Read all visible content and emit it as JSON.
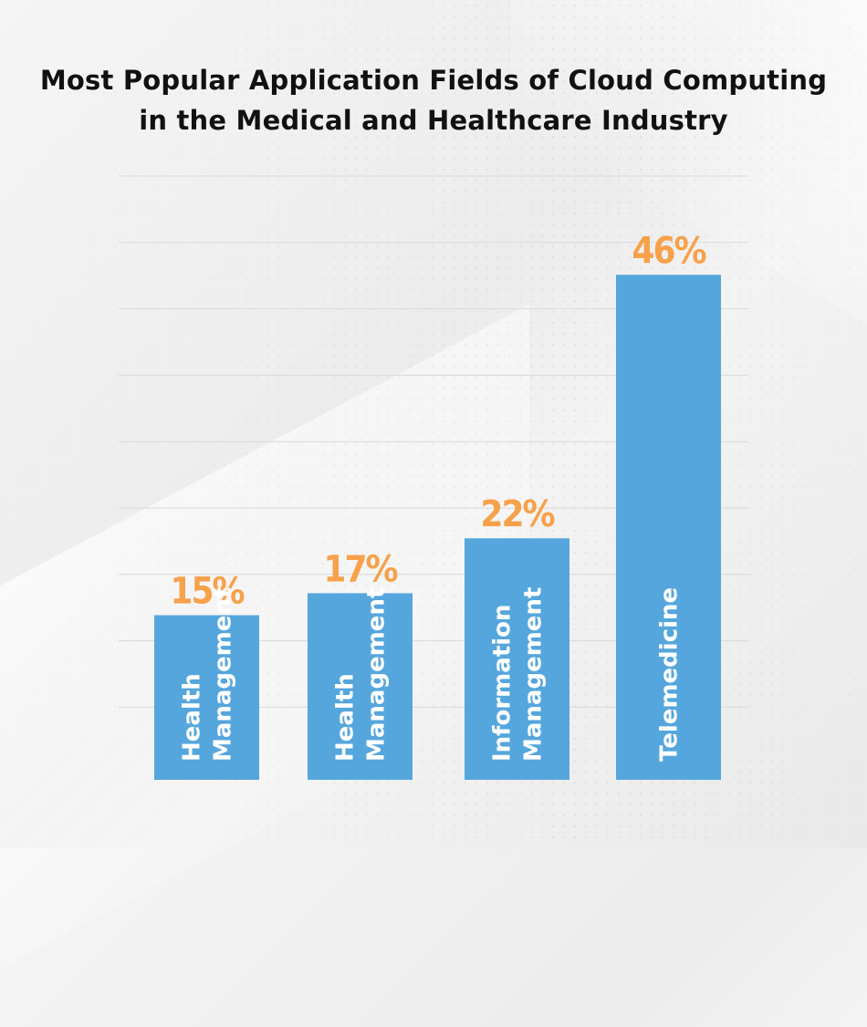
{
  "title_line1": "Most Popular Application Fields of Cloud Computing",
  "title_line2": "in the Medical and Healthcare Industry",
  "colors": {
    "bar": "#55a6dd",
    "value": "#f7a14b",
    "grid": "#d9d9d9"
  },
  "chart_data": {
    "type": "bar",
    "categories": [
      [
        "Health",
        "Management"
      ],
      [
        "Health",
        "Management"
      ],
      [
        "Information",
        "Management"
      ],
      [
        "Telemedicine"
      ]
    ],
    "values": [
      15,
      17,
      22,
      46
    ],
    "value_labels": [
      "15%",
      "17%",
      "22%",
      "46%"
    ],
    "ylim": [
      0,
      55
    ],
    "grid": true,
    "xlabel": "",
    "ylabel": ""
  }
}
